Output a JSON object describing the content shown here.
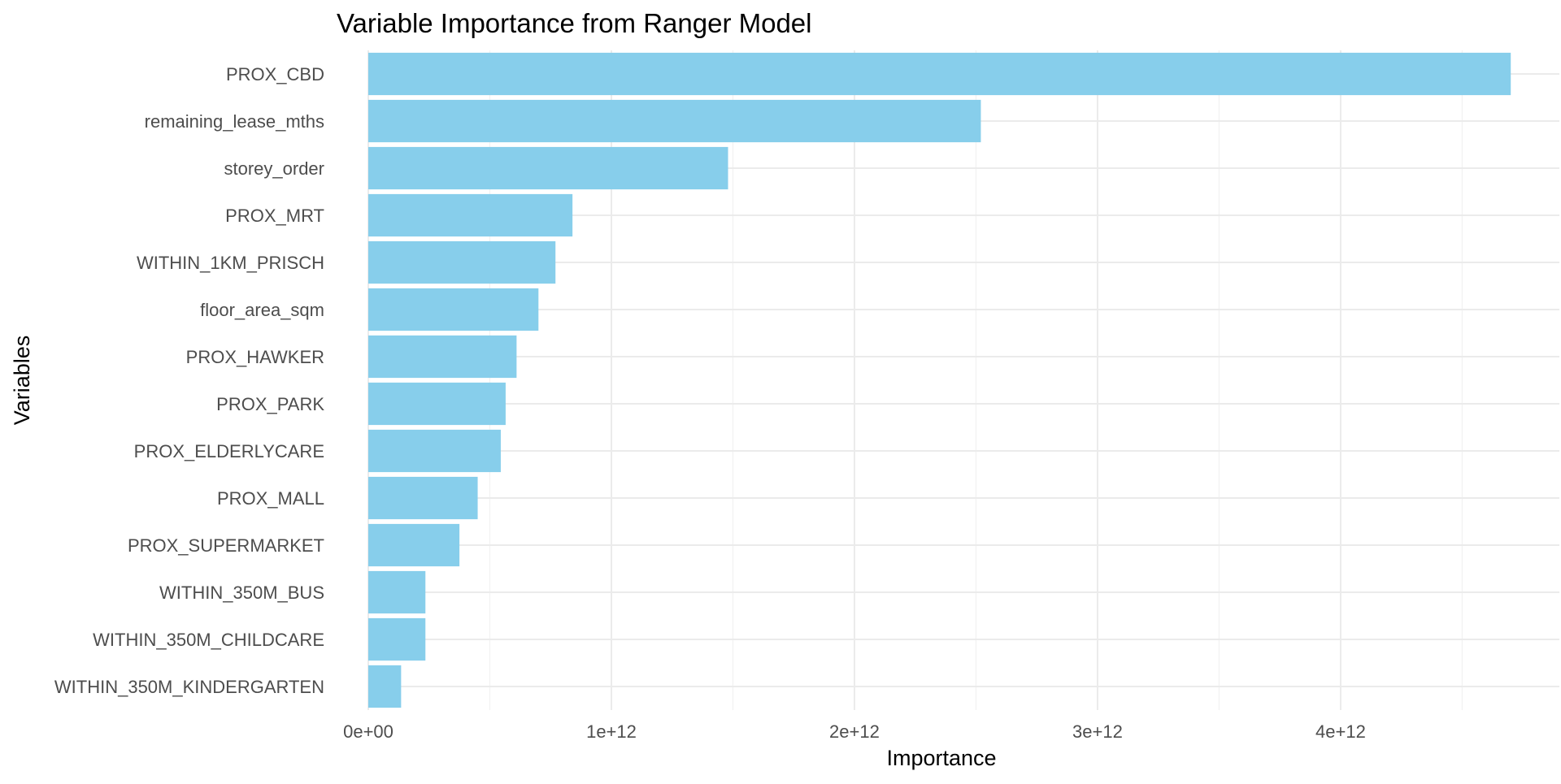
{
  "chart_data": {
    "type": "bar",
    "orientation": "horizontal",
    "title": "Variable Importance from Ranger Model",
    "xlabel": "Importance",
    "ylabel": "Variables",
    "categories": [
      "PROX_CBD",
      "remaining_lease_mths",
      "storey_order",
      "PROX_MRT",
      "WITHIN_1KM_PRISCH",
      "floor_area_sqm",
      "PROX_HAWKER",
      "PROX_PARK",
      "PROX_ELDERLYCARE",
      "PROX_MALL",
      "PROX_SUPERMARKET",
      "WITHIN_350M_BUS",
      "WITHIN_350M_CHILDCARE",
      "WITHIN_350M_KINDERGARTEN"
    ],
    "values": [
      4700000000000.0,
      2520000000000.0,
      1480000000000.0,
      840000000000.0,
      770000000000.0,
      700000000000.0,
      610000000000.0,
      565000000000.0,
      545000000000.0,
      450000000000.0,
      375000000000.0,
      235000000000.0,
      235000000000.0,
      135000000000.0
    ],
    "xlim": [
      0,
      4900000000000.0
    ],
    "x_ticks": [
      0,
      1000000000000.0,
      2000000000000.0,
      3000000000000.0,
      4000000000000.0
    ],
    "x_tick_labels": [
      "0e+00",
      "1e+12",
      "2e+12",
      "3e+12",
      "4e+12"
    ],
    "bar_color": "#87CEEB",
    "grid": true,
    "legend": "none"
  }
}
